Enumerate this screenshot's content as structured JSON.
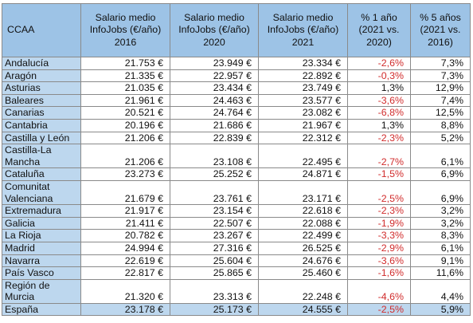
{
  "header": {
    "ccaa": "CCAA",
    "col2016": [
      "Salario medio",
      "InfoJobs (€/año)",
      "2016"
    ],
    "col2020": [
      "Salario medio",
      "InfoJobs (€/año)",
      "2020"
    ],
    "col2021": [
      "Salario medio",
      "InfoJobs (€/año)",
      "2021"
    ],
    "pct1": [
      "% 1 año",
      "(2021 vs.",
      "2020)"
    ],
    "pct5": [
      "% 5 años",
      "(2021 vs.",
      "2016)"
    ]
  },
  "rows": [
    {
      "region": "Andalucía",
      "s2016": "21.753 €",
      "s2020": "23.949 €",
      "s2021": "23.334 €",
      "p1": "-2,6%",
      "p5": "7,3%"
    },
    {
      "region": "Aragón",
      "s2016": "21.335 €",
      "s2020": "22.957 €",
      "s2021": "22.892 €",
      "p1": "-0,3%",
      "p5": "7,3%"
    },
    {
      "region": "Asturias",
      "s2016": "21.035 €",
      "s2020": "23.434 €",
      "s2021": "23.749 €",
      "p1": "1,3%",
      "p5": "12,9%"
    },
    {
      "region": "Baleares",
      "s2016": "21.961 €",
      "s2020": "24.463 €",
      "s2021": "23.577 €",
      "p1": "-3,6%",
      "p5": "7,4%"
    },
    {
      "region": "Canarias",
      "s2016": "20.521 €",
      "s2020": "24.764 €",
      "s2021": "23.082 €",
      "p1": "-6,8%",
      "p5": "12,5%"
    },
    {
      "region": "Cantabria",
      "s2016": "20.196 €",
      "s2020": "21.686 €",
      "s2021": "21.967 €",
      "p1": "1,3%",
      "p5": "8,8%"
    },
    {
      "region": "Castilla y León",
      "s2016": "21.206 €",
      "s2020": "22.839 €",
      "s2021": "22.312 €",
      "p1": "-2,3%",
      "p5": "5,2%"
    },
    {
      "region": [
        "Castilla-La",
        "Mancha"
      ],
      "s2016": "21.206 €",
      "s2020": "23.108 €",
      "s2021": "22.495 €",
      "p1": "-2,7%",
      "p5": "6,1%"
    },
    {
      "region": "Cataluña",
      "s2016": "23.273 €",
      "s2020": "25.252 €",
      "s2021": "24.871 €",
      "p1": "-1,5%",
      "p5": "6,9%"
    },
    {
      "region": [
        "Comunitat",
        "Valenciana"
      ],
      "s2016": "21.679 €",
      "s2020": "23.761 €",
      "s2021": "23.171 €",
      "p1": "-2,5%",
      "p5": "6,9%"
    },
    {
      "region": "Extremadura",
      "s2016": "21.917 €",
      "s2020": "23.154 €",
      "s2021": "22.618 €",
      "p1": "-2,3%",
      "p5": "3,2%"
    },
    {
      "region": "Galicia",
      "s2016": "21.411 €",
      "s2020": "22.507 €",
      "s2021": "22.088 €",
      "p1": "-1,9%",
      "p5": "3,2%"
    },
    {
      "region": "La Rioja",
      "s2016": "20.782 €",
      "s2020": "23.267 €",
      "s2021": "22.499 €",
      "p1": "-3,3%",
      "p5": "8,3%"
    },
    {
      "region": "Madrid",
      "s2016": "24.994 €",
      "s2020": "27.316 €",
      "s2021": "26.525 €",
      "p1": "-2,9%",
      "p5": "6,1%"
    },
    {
      "region": "Navarra",
      "s2016": "22.619 €",
      "s2020": "25.604 €",
      "s2021": "24.676 €",
      "p1": "-3,6%",
      "p5": "9,1%"
    },
    {
      "region": "País Vasco",
      "s2016": "22.817 €",
      "s2020": "25.865 €",
      "s2021": "25.460 €",
      "p1": "-1,6%",
      "p5": "11,6%"
    },
    {
      "region": [
        "Región de",
        "Murcia"
      ],
      "s2016": "21.320 €",
      "s2020": "23.313 €",
      "s2021": "22.248 €",
      "p1": "-4,6%",
      "p5": "4,4%"
    },
    {
      "region": "España",
      "s2016": "23.178 €",
      "s2020": "25.173 €",
      "s2021": "24.555 €",
      "p1": "-2,5%",
      "p5": "5,9%",
      "total": true
    }
  ],
  "colors": {
    "header_bg": "#9dc3e6",
    "region_bg": "#bdd7ee",
    "negative": "#d12c2c"
  }
}
